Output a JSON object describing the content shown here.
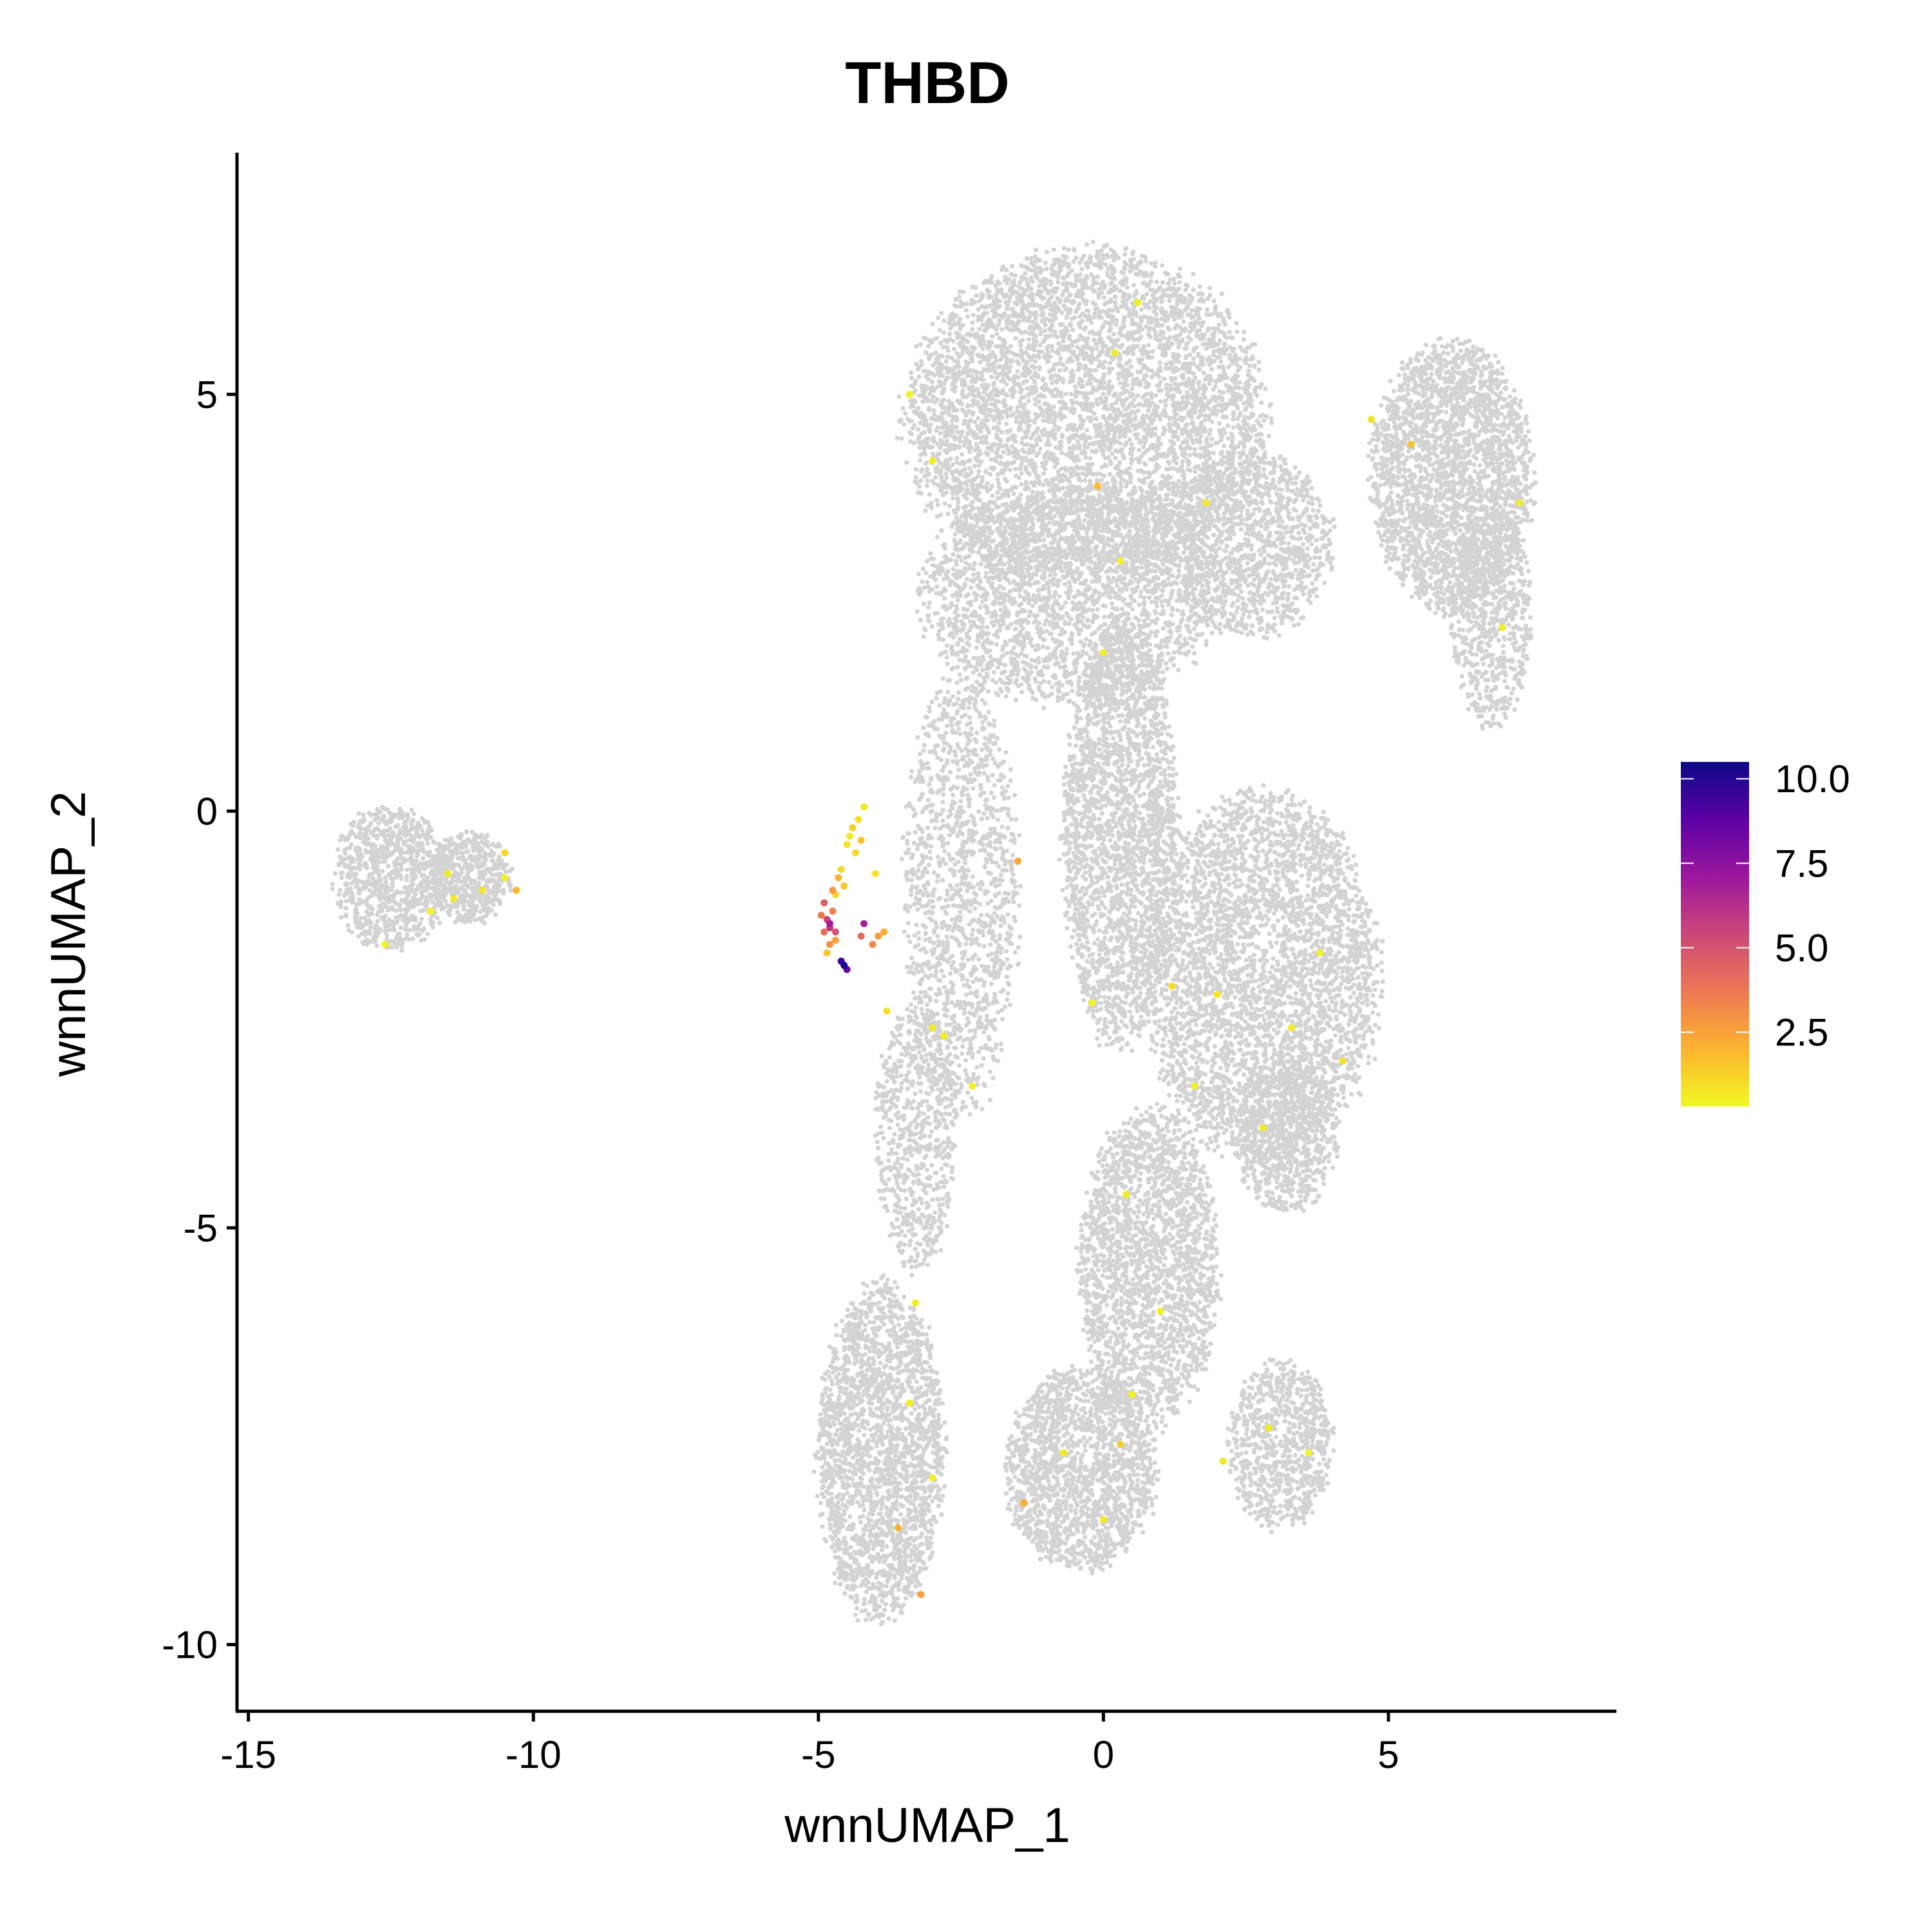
{
  "chart_data": {
    "type": "scatter",
    "title": "THBD",
    "xlabel": "wnnUMAP_1",
    "ylabel": "wnnUMAP_2",
    "xlim": [
      -15.2,
      9.0
    ],
    "ylim": [
      -10.8,
      7.9
    ],
    "x_ticks": [
      -15,
      -10,
      -5,
      0,
      5
    ],
    "x_tick_labels": [
      "-15",
      "-10",
      "-5",
      "0",
      "5"
    ],
    "y_ticks": [
      -10,
      -5,
      0,
      5
    ],
    "y_tick_labels": [
      "-10",
      "-5",
      "0",
      "5"
    ],
    "grid": false,
    "legend_position": "right",
    "colorscale": {
      "name": "plasma",
      "min": 0.3,
      "max": 10.5,
      "ticks": [
        2.5,
        5.0,
        7.5,
        10.0
      ],
      "tick_labels": [
        "2.5",
        "5.0",
        "7.5",
        "10.0"
      ],
      "stops": [
        "#f0f921",
        "#fdb32f",
        "#ed7953",
        "#cc4778",
        "#9c179e",
        "#5c01a6",
        "#0d0887"
      ]
    },
    "background_color": "#d3d3d3",
    "background_clusters": [
      {
        "name": "top-lobe",
        "cx": -0.3,
        "cy": 4.7,
        "rx": 3.1,
        "ry": 2.0,
        "n": 5200
      },
      {
        "name": "top-lobe-lower",
        "cx": -0.6,
        "cy": 2.6,
        "rx": 2.6,
        "ry": 1.3,
        "n": 2400
      },
      {
        "name": "right-arm-base",
        "cx": 2.6,
        "cy": 3.2,
        "rx": 1.4,
        "ry": 1.1,
        "n": 1200
      },
      {
        "name": "right-arm",
        "cx": 6.1,
        "cy": 4.0,
        "rx": 1.4,
        "ry": 1.6,
        "n": 2600
      },
      {
        "name": "right-arm-tail",
        "cx": 6.8,
        "cy": 2.3,
        "rx": 0.7,
        "ry": 1.3,
        "n": 700
      },
      {
        "name": "center-column",
        "cx": 0.3,
        "cy": -0.3,
        "rx": 1.0,
        "ry": 2.5,
        "n": 2400
      },
      {
        "name": "right-mid",
        "cx": 2.8,
        "cy": -2.0,
        "rx": 2.0,
        "ry": 2.2,
        "n": 3800
      },
      {
        "name": "right-mid-lower",
        "cx": 3.2,
        "cy": -3.9,
        "rx": 0.9,
        "ry": 0.9,
        "n": 700
      },
      {
        "name": "left-mid-stream",
        "cx": -2.5,
        "cy": -1.0,
        "rx": 1.0,
        "ry": 2.6,
        "n": 1400
      },
      {
        "name": "left-lower-stream",
        "cx": -3.3,
        "cy": -3.9,
        "rx": 0.7,
        "ry": 1.6,
        "n": 700
      },
      {
        "name": "bottom-stream",
        "cx": 0.8,
        "cy": -5.5,
        "rx": 1.2,
        "ry": 1.9,
        "n": 2200
      },
      {
        "name": "bottom-left",
        "cx": -3.9,
        "cy": -7.7,
        "rx": 1.1,
        "ry": 2.0,
        "n": 2300
      },
      {
        "name": "bottom-center",
        "cx": -0.4,
        "cy": -7.9,
        "rx": 1.3,
        "ry": 1.2,
        "n": 1700
      },
      {
        "name": "bottom-right",
        "cx": 3.1,
        "cy": -7.6,
        "rx": 0.9,
        "ry": 1.0,
        "n": 800
      },
      {
        "name": "far-left-cluster",
        "cx": -12.5,
        "cy": -0.8,
        "rx": 1.0,
        "ry": 0.85,
        "n": 900
      },
      {
        "name": "far-left-cluster-b",
        "cx": -11.1,
        "cy": -0.8,
        "rx": 0.7,
        "ry": 0.55,
        "n": 500
      }
    ],
    "expressing_points": [
      [
        -4.9,
        -1.1,
        4.5
      ],
      [
        -4.85,
        -1.3,
        5.5
      ],
      [
        -4.8,
        -1.4,
        6.0
      ],
      [
        -4.75,
        -1.2,
        3.5
      ],
      [
        -4.9,
        -1.45,
        4.0
      ],
      [
        -4.7,
        -1.55,
        2.5
      ],
      [
        -4.8,
        -1.6,
        3.0
      ],
      [
        -4.85,
        -1.7,
        1.5
      ],
      [
        -4.6,
        -1.8,
        9.5
      ],
      [
        -4.55,
        -1.85,
        10.3
      ],
      [
        -4.5,
        -1.9,
        8.5
      ],
      [
        -4.7,
        -1.0,
        1.2
      ],
      [
        -4.6,
        -0.7,
        1.0
      ],
      [
        -4.5,
        -0.4,
        0.8
      ],
      [
        -4.4,
        -0.2,
        1.3
      ],
      [
        -4.3,
        -0.1,
        0.9
      ],
      [
        -4.2,
        0.05,
        0.7
      ],
      [
        -4.35,
        -0.5,
        1.1
      ],
      [
        -4.55,
        -0.9,
        1.5
      ],
      [
        -4.65,
        -0.8,
        2.0
      ],
      [
        -4.45,
        -0.3,
        0.6
      ],
      [
        -4.25,
        -0.35,
        1.6
      ],
      [
        -4.75,
        -0.95,
        2.8
      ],
      [
        -4.95,
        -1.25,
        3.8
      ],
      [
        -4.8,
        -1.35,
        7.0
      ],
      [
        -4.7,
        -1.45,
        5.0
      ],
      [
        -4.25,
        -1.5,
        4.2
      ],
      [
        -4.05,
        -1.6,
        3.3
      ],
      [
        -3.95,
        -1.5,
        2.6
      ],
      [
        -3.85,
        -1.45,
        2.2
      ],
      [
        -4.2,
        -1.35,
        6.8
      ],
      [
        -4.0,
        -0.75,
        0.8
      ],
      [
        -3.8,
        -2.4,
        0.9
      ],
      [
        -1.5,
        -0.6,
        2.4
      ],
      [
        -2.8,
        -2.7,
        0.6
      ],
      [
        -2.3,
        -3.3,
        0.5
      ],
      [
        -3.0,
        -2.6,
        0.7
      ],
      [
        -10.5,
        -0.5,
        1.1
      ],
      [
        -10.3,
        -0.95,
        2.0
      ],
      [
        -11.4,
        -1.05,
        0.7
      ],
      [
        -11.5,
        -0.75,
        0.6
      ],
      [
        -12.6,
        -1.6,
        0.5
      ],
      [
        -11.8,
        -1.2,
        0.4
      ],
      [
        -10.9,
        -0.95,
        0.8
      ],
      [
        -10.5,
        -0.8,
        0.5
      ],
      [
        -3.2,
        -9.4,
        2.5
      ],
      [
        -3.6,
        -8.6,
        2.0
      ],
      [
        -1.4,
        -8.3,
        2.2
      ],
      [
        -0.1,
        3.9,
        1.8
      ],
      [
        5.4,
        4.4,
        1.6
      ],
      [
        -0.2,
        -2.3,
        0.5
      ],
      [
        -3.3,
        -5.9,
        0.6
      ],
      [
        -3.4,
        -7.1,
        0.6
      ],
      [
        -3.0,
        -8.0,
        0.5
      ],
      [
        0.5,
        -7.0,
        0.5
      ],
      [
        0.3,
        -7.6,
        1.5
      ],
      [
        -0.7,
        -7.7,
        0.7
      ],
      [
        0.0,
        -8.5,
        0.6
      ],
      [
        2.1,
        -7.8,
        0.7
      ],
      [
        2.9,
        -7.4,
        0.6
      ],
      [
        3.6,
        -7.7,
        0.5
      ],
      [
        3.3,
        -2.6,
        0.6
      ],
      [
        2.0,
        -2.2,
        0.7
      ],
      [
        4.2,
        -3.0,
        0.8
      ],
      [
        3.8,
        -1.7,
        0.5
      ],
      [
        2.8,
        -3.8,
        0.6
      ],
      [
        1.2,
        -2.1,
        0.9
      ],
      [
        1.6,
        -3.3,
        0.5
      ],
      [
        0.4,
        -4.6,
        0.6
      ],
      [
        1.0,
        -6.0,
        0.5
      ],
      [
        0.6,
        6.1,
        0.5
      ],
      [
        0.2,
        5.5,
        0.6
      ],
      [
        1.8,
        3.7,
        0.7
      ],
      [
        4.7,
        4.7,
        0.8
      ],
      [
        7.3,
        3.7,
        0.6
      ],
      [
        0.3,
        3.0,
        0.5
      ],
      [
        -3.0,
        4.2,
        0.6
      ],
      [
        -3.4,
        5.0,
        0.5
      ],
      [
        7.0,
        2.2,
        0.6
      ],
      [
        0.0,
        1.9,
        0.5
      ]
    ]
  }
}
